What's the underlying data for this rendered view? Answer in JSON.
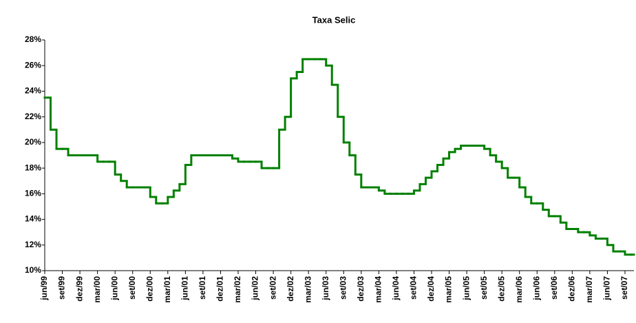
{
  "chart_data": {
    "type": "step",
    "title": "Taxa Selic",
    "categories": [
      "jun/99",
      null,
      null,
      "set/99",
      null,
      null,
      "dez/99",
      null,
      null,
      "mar/00",
      null,
      null,
      "jun/00",
      null,
      null,
      "set/00",
      null,
      null,
      "dez/00",
      null,
      null,
      "mar/01",
      null,
      null,
      "jun/01",
      null,
      null,
      "set/01",
      null,
      null,
      "dez/01",
      null,
      null,
      "mar/02",
      null,
      null,
      "jun/02",
      null,
      null,
      "set/02",
      null,
      null,
      "dez/02",
      null,
      null,
      "mar/03",
      null,
      null,
      "jun/03",
      null,
      null,
      "set/03",
      null,
      null,
      "dez/03",
      null,
      null,
      "mar/04",
      null,
      null,
      "jun/04",
      null,
      null,
      "set/04",
      null,
      null,
      "dez/04",
      null,
      null,
      "mar/05",
      null,
      null,
      "jun/05",
      null,
      null,
      "set/05",
      null,
      null,
      "dez/05",
      null,
      null,
      "mar/06",
      null,
      null,
      "jun/06",
      null,
      null,
      "set/06",
      null,
      null,
      "dez/06",
      null,
      null,
      "mar/07",
      null,
      null,
      "jun/07",
      null,
      null,
      "set/07",
      null
    ],
    "values": [
      23.5,
      21,
      19.5,
      19.5,
      19,
      19,
      19,
      19,
      19,
      18.5,
      18.5,
      18.5,
      17.5,
      17,
      16.5,
      16.5,
      16.5,
      16.5,
      15.75,
      15.25,
      15.25,
      15.75,
      16.25,
      16.75,
      18.25,
      19,
      19,
      19,
      19,
      19,
      19,
      19,
      18.75,
      18.5,
      18.5,
      18.5,
      18.5,
      18,
      18,
      18,
      21,
      22,
      25,
      25.5,
      26.5,
      26.5,
      26.5,
      26.5,
      26,
      24.5,
      22,
      20,
      19,
      17.5,
      16.5,
      16.5,
      16.5,
      16.25,
      16,
      16,
      16,
      16,
      16,
      16.25,
      16.75,
      17.25,
      17.75,
      18.25,
      18.75,
      19.25,
      19.5,
      19.75,
      19.75,
      19.75,
      19.75,
      19.5,
      19,
      18.5,
      18,
      17.25,
      17.25,
      16.5,
      15.75,
      15.25,
      15.25,
      14.75,
      14.25,
      14.25,
      13.75,
      13.25,
      13.25,
      13,
      13,
      12.75,
      12.5,
      12.5,
      12,
      11.5,
      11.5,
      11.25,
      11.25
    ],
    "color": "#008000",
    "ylim": [
      10,
      28
    ],
    "yticks": [
      {
        "value": 10,
        "label": "10%"
      },
      {
        "value": 12,
        "label": "12%"
      },
      {
        "value": 14,
        "label": "14%"
      },
      {
        "value": 16,
        "label": "16%"
      },
      {
        "value": 18,
        "label": "18%"
      },
      {
        "value": 20,
        "label": "20%"
      },
      {
        "value": 22,
        "label": "22%"
      },
      {
        "value": 24,
        "label": "24%"
      },
      {
        "value": 26,
        "label": "26%"
      },
      {
        "value": 28,
        "label": "28%"
      }
    ],
    "grid": false
  }
}
